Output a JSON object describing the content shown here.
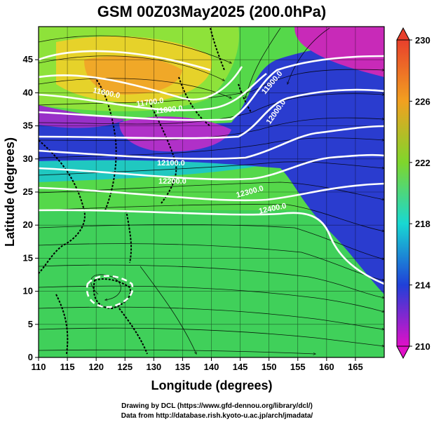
{
  "title": "GSM 00Z03May2025 (200.0hPa)",
  "xlabel": "Longitude (degrees)",
  "ylabel": "Latitude  (degrees)",
  "x_ticks": [
    "110",
    "115",
    "120",
    "125",
    "130",
    "135",
    "140",
    "145",
    "150",
    "155",
    "160",
    "165"
  ],
  "y_ticks": [
    "0",
    "5",
    "10",
    "15",
    "20",
    "25",
    "30",
    "35",
    "40",
    "45"
  ],
  "colorbar": {
    "min": 210,
    "max": 230,
    "tick_labels": [
      "230",
      "226",
      "222",
      "218",
      "214",
      "210"
    ]
  },
  "contours": [
    {
      "label": "11600.0"
    },
    {
      "label": "11700.0"
    },
    {
      "label": "11800.0"
    },
    {
      "label": "11900.0"
    },
    {
      "label": "12000.0"
    },
    {
      "label": "12100.0"
    },
    {
      "label": "12200.0"
    },
    {
      "label": "12300.0"
    },
    {
      "label": "12400.0"
    }
  ],
  "footer": {
    "line1": "Drawing by DCL (https://www.gfd-dennou.org/library/dcl/)",
    "line2": "Data from http://database.rish.kyoto-u.ac.jp/arch/jmadata/"
  }
}
